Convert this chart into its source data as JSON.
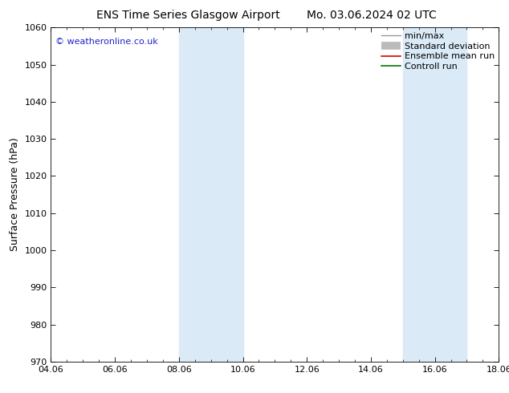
{
  "title": "ENS Time Series Glasgow Airport",
  "title2": "Mo. 03.06.2024 02 UTC",
  "ylabel": "Surface Pressure (hPa)",
  "ylim": [
    970,
    1060
  ],
  "yticks": [
    970,
    980,
    990,
    1000,
    1010,
    1020,
    1030,
    1040,
    1050,
    1060
  ],
  "xlim_start": 0,
  "xlim_end": 14,
  "xtick_positions": [
    0,
    2,
    4,
    6,
    8,
    10,
    12,
    14
  ],
  "xtick_labels": [
    "04.06",
    "06.06",
    "08.06",
    "10.06",
    "12.06",
    "14.06",
    "16.06",
    "18.06"
  ],
  "shade_bands": [
    {
      "xmin": 4,
      "xmax": 6
    },
    {
      "xmin": 11,
      "xmax": 13
    }
  ],
  "shade_color": "#daeaf7",
  "legend_entries": [
    "min/max",
    "Standard deviation",
    "Ensemble mean run",
    "Controll run"
  ],
  "legend_colors": [
    "#999999",
    "#bbbbbb",
    "#dd0000",
    "#007700"
  ],
  "copyright_text": "© weatheronline.co.uk",
  "copyright_color": "#2222cc",
  "bg_color": "#ffffff",
  "title_fontsize": 10,
  "ylabel_fontsize": 9,
  "tick_fontsize": 8,
  "legend_fontsize": 8
}
